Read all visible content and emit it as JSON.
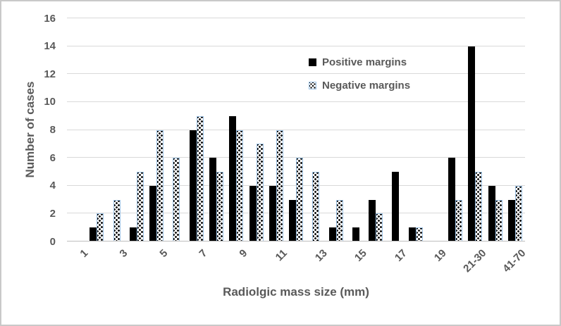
{
  "chart_data": {
    "type": "bar",
    "title": "",
    "xlabel": "Radiolgic mass size (mm)",
    "ylabel": "Number of cases",
    "ylim": [
      0,
      16
    ],
    "yticks": [
      0,
      2,
      4,
      6,
      8,
      10,
      12,
      14,
      16
    ],
    "grid": "horizontal",
    "legend_position": "inside-upper-middle",
    "categories": [
      "1",
      "",
      "3",
      "",
      "5",
      "",
      "7",
      "",
      "9",
      "",
      "11",
      "",
      "13",
      "",
      "15",
      "",
      "17",
      "",
      "19",
      "",
      "21-30",
      "",
      "41-70"
    ],
    "series": [
      {
        "name": "Positive margins",
        "style": "solid-black",
        "color": "#000000",
        "values": [
          0,
          1,
          0,
          1,
          4,
          0,
          8,
          6,
          9,
          4,
          4,
          3,
          0,
          1,
          1,
          3,
          5,
          1,
          0,
          6,
          14,
          4,
          3
        ]
      },
      {
        "name": "Negative margins",
        "style": "checkered-dots",
        "color": "#ffffff",
        "border_color": "#9dc3e6",
        "values": [
          0,
          2,
          3,
          5,
          8,
          6,
          9,
          5,
          8,
          7,
          8,
          6,
          5,
          3,
          0,
          2,
          0,
          1,
          0,
          3,
          5,
          3,
          4
        ]
      }
    ]
  },
  "colors": {
    "text": "#595959",
    "gridline": "#d9d9d9",
    "axis_line": "#bfbfbf",
    "frame_border": "#c9c9c9",
    "background": "#ffffff"
  }
}
